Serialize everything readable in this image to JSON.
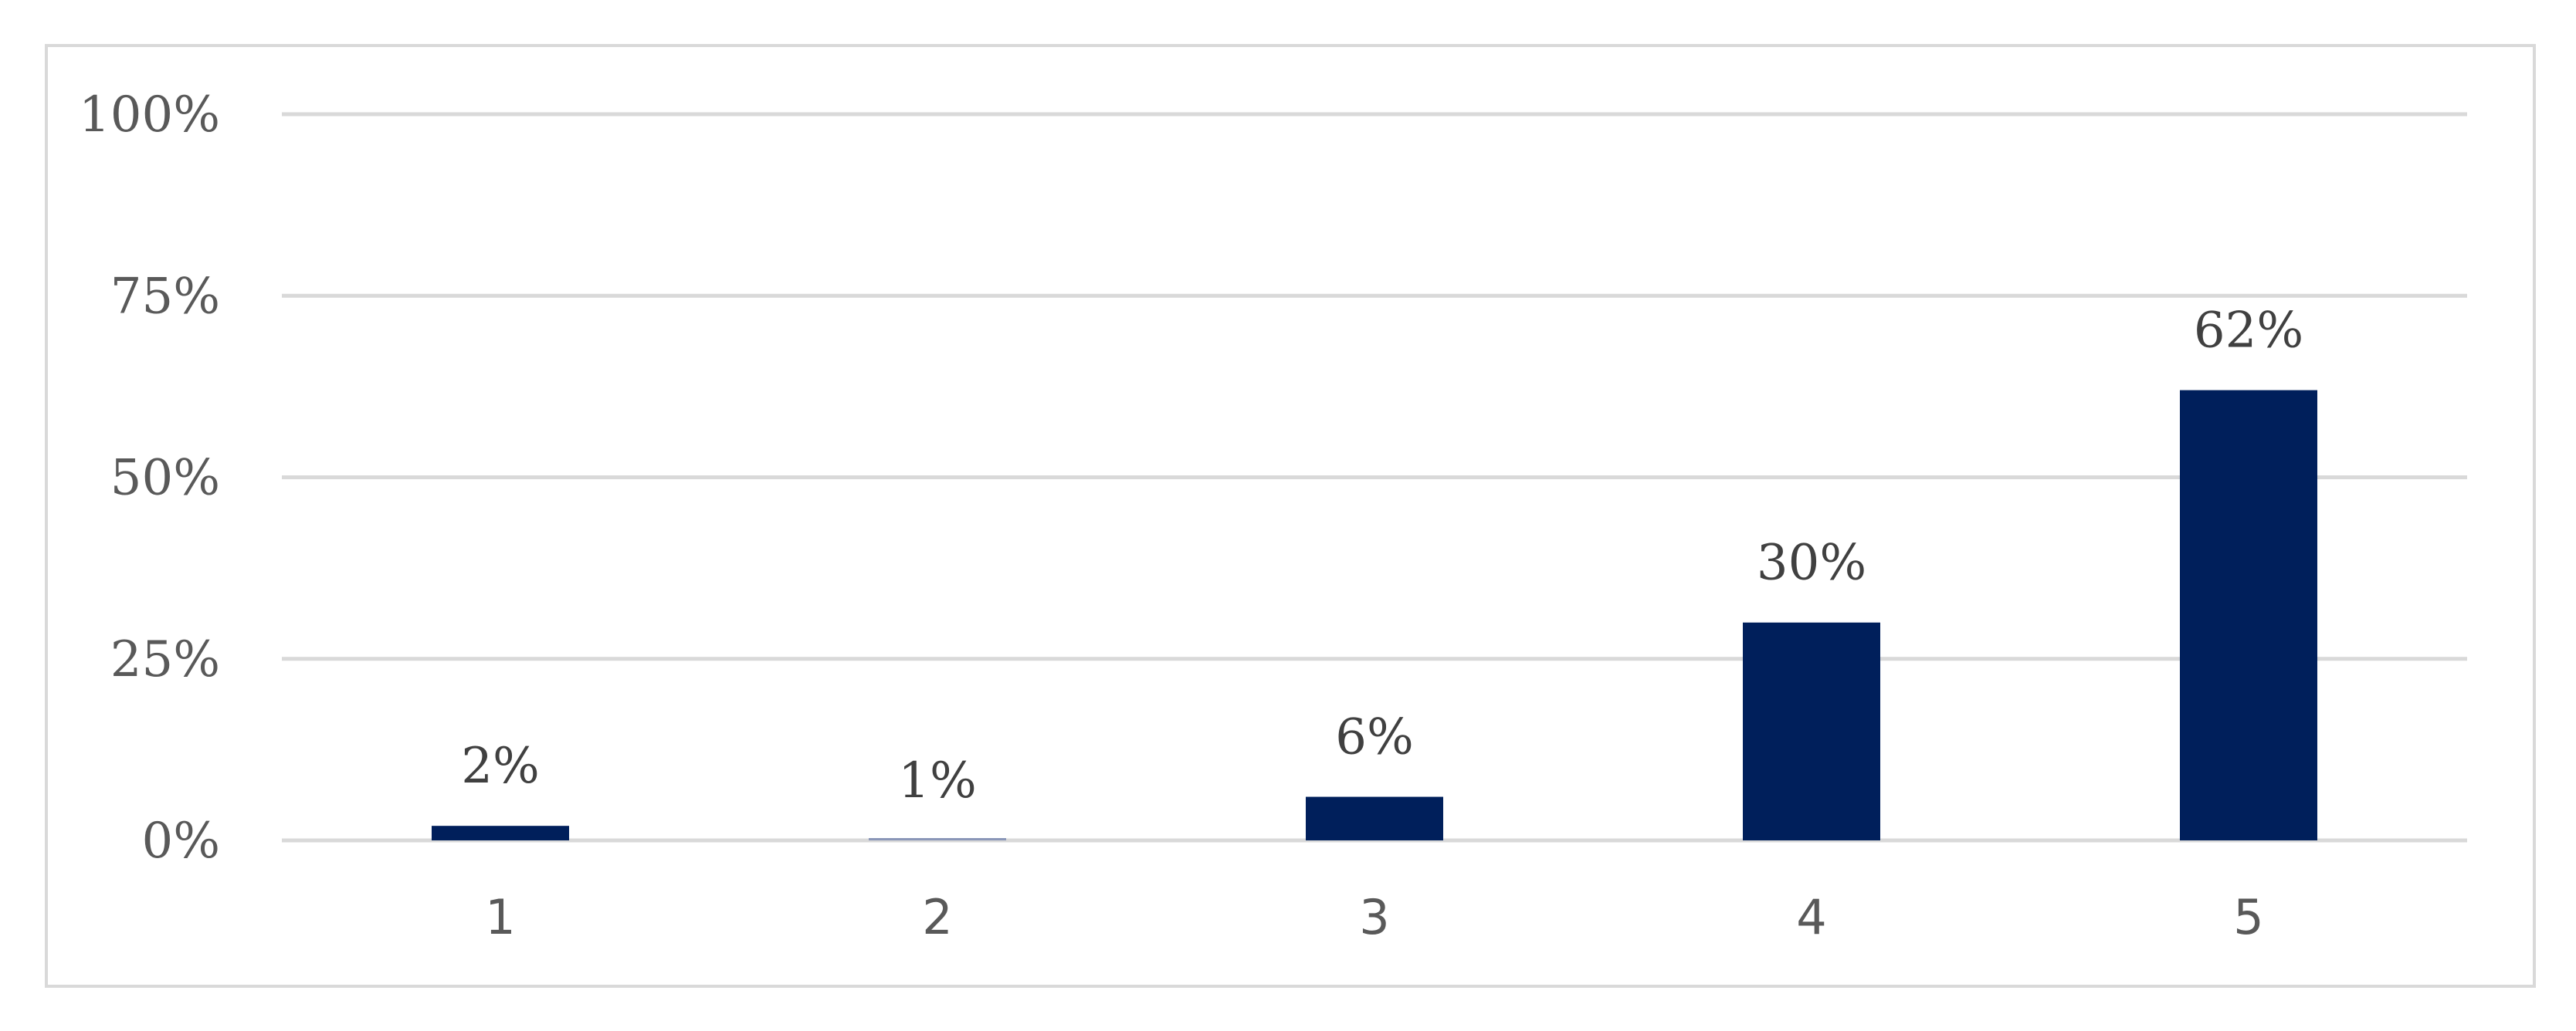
{
  "chart_data": {
    "type": "bar",
    "categories": [
      "1",
      "2",
      "3",
      "4",
      "5"
    ],
    "values": [
      2,
      1,
      6,
      30,
      62
    ],
    "data_labels": [
      "2%",
      "1%",
      "6%",
      "30%",
      "62%"
    ],
    "ylim": [
      0,
      100
    ],
    "yticks": [
      0,
      25,
      50,
      75,
      100
    ],
    "ytick_labels": [
      "0%",
      "25%",
      "50%",
      "75%",
      "100%"
    ],
    "title": "",
    "xlabel": "",
    "ylabel": "",
    "grid": true,
    "legend": "none",
    "bar_color": "#001f5b",
    "grid_color": "#d9d9d9"
  }
}
